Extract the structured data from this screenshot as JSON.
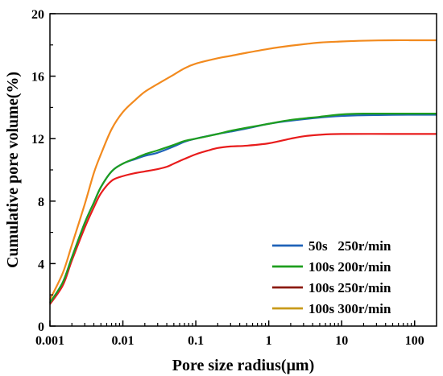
{
  "chart_data": {
    "type": "line",
    "x_scale": "log",
    "xlim": [
      0.001,
      200
    ],
    "ylim": [
      0,
      20
    ],
    "xlabel": "Pore size radius(μm)",
    "ylabel": "Cumulative pore volume(%)",
    "x_ticks": [
      {
        "value": 0.001,
        "label": "0.001"
      },
      {
        "value": 0.01,
        "label": "0.01"
      },
      {
        "value": 0.1,
        "label": "0.1"
      },
      {
        "value": 1,
        "label": "1"
      },
      {
        "value": 10,
        "label": "10"
      },
      {
        "value": 100,
        "label": "100"
      }
    ],
    "y_ticks": [
      {
        "value": 0,
        "label": "0"
      },
      {
        "value": 4,
        "label": "4"
      },
      {
        "value": 8,
        "label": "8"
      },
      {
        "value": 12,
        "label": "12"
      },
      {
        "value": 16,
        "label": "16"
      },
      {
        "value": 20,
        "label": "20"
      }
    ],
    "legend_position": "bottom-right",
    "series": [
      {
        "name": "50s   250r/min",
        "legend_color": "#1f63b8",
        "line_color": "#1f63b8",
        "points": [
          [
            0.001,
            1.5
          ],
          [
            0.0015,
            2.8
          ],
          [
            0.002,
            4.4
          ],
          [
            0.003,
            6.6
          ],
          [
            0.004,
            7.9
          ],
          [
            0.005,
            8.9
          ],
          [
            0.007,
            9.9
          ],
          [
            0.01,
            10.4
          ],
          [
            0.015,
            10.7
          ],
          [
            0.02,
            10.9
          ],
          [
            0.03,
            11.1
          ],
          [
            0.05,
            11.5
          ],
          [
            0.07,
            11.8
          ],
          [
            0.1,
            12.0
          ],
          [
            0.2,
            12.3
          ],
          [
            0.3,
            12.45
          ],
          [
            0.5,
            12.65
          ],
          [
            1,
            12.95
          ],
          [
            2,
            13.15
          ],
          [
            5,
            13.35
          ],
          [
            10,
            13.45
          ],
          [
            20,
            13.5
          ],
          [
            50,
            13.52
          ],
          [
            100,
            13.53
          ],
          [
            200,
            13.53
          ]
        ]
      },
      {
        "name": "100s 200r/min",
        "legend_color": "#1e9e1e",
        "line_color": "#1e9e1e",
        "points": [
          [
            0.001,
            1.5
          ],
          [
            0.0015,
            2.8
          ],
          [
            0.002,
            4.4
          ],
          [
            0.003,
            6.6
          ],
          [
            0.004,
            7.9
          ],
          [
            0.005,
            8.9
          ],
          [
            0.007,
            9.9
          ],
          [
            0.01,
            10.4
          ],
          [
            0.015,
            10.75
          ],
          [
            0.02,
            11.0
          ],
          [
            0.03,
            11.25
          ],
          [
            0.05,
            11.6
          ],
          [
            0.07,
            11.85
          ],
          [
            0.1,
            12.0
          ],
          [
            0.2,
            12.3
          ],
          [
            0.3,
            12.5
          ],
          [
            0.5,
            12.7
          ],
          [
            1,
            12.95
          ],
          [
            2,
            13.2
          ],
          [
            5,
            13.4
          ],
          [
            10,
            13.55
          ],
          [
            20,
            13.6
          ],
          [
            50,
            13.6
          ],
          [
            100,
            13.6
          ],
          [
            200,
            13.6
          ]
        ]
      },
      {
        "name": "100s 250r/min",
        "legend_color": "#8b1a10",
        "line_color": "#e81c1c",
        "points": [
          [
            0.001,
            1.4
          ],
          [
            0.0015,
            2.6
          ],
          [
            0.002,
            4.2
          ],
          [
            0.003,
            6.3
          ],
          [
            0.004,
            7.6
          ],
          [
            0.005,
            8.5
          ],
          [
            0.007,
            9.3
          ],
          [
            0.01,
            9.6
          ],
          [
            0.015,
            9.8
          ],
          [
            0.02,
            9.9
          ],
          [
            0.03,
            10.05
          ],
          [
            0.04,
            10.2
          ],
          [
            0.05,
            10.4
          ],
          [
            0.07,
            10.7
          ],
          [
            0.1,
            11.0
          ],
          [
            0.15,
            11.25
          ],
          [
            0.2,
            11.4
          ],
          [
            0.3,
            11.5
          ],
          [
            0.5,
            11.55
          ],
          [
            1,
            11.7
          ],
          [
            2,
            12.0
          ],
          [
            3,
            12.15
          ],
          [
            5,
            12.25
          ],
          [
            10,
            12.3
          ],
          [
            50,
            12.3
          ],
          [
            200,
            12.3
          ]
        ]
      },
      {
        "name": "100s 300r/min",
        "legend_color": "#c99a1a",
        "line_color": "#f28a1e",
        "points": [
          [
            0.001,
            1.7
          ],
          [
            0.0015,
            3.4
          ],
          [
            0.002,
            5.2
          ],
          [
            0.003,
            7.8
          ],
          [
            0.004,
            9.8
          ],
          [
            0.005,
            11.0
          ],
          [
            0.007,
            12.6
          ],
          [
            0.01,
            13.7
          ],
          [
            0.015,
            14.5
          ],
          [
            0.02,
            15.0
          ],
          [
            0.03,
            15.5
          ],
          [
            0.05,
            16.1
          ],
          [
            0.07,
            16.5
          ],
          [
            0.1,
            16.8
          ],
          [
            0.2,
            17.15
          ],
          [
            0.3,
            17.3
          ],
          [
            0.5,
            17.5
          ],
          [
            1,
            17.75
          ],
          [
            2,
            17.95
          ],
          [
            5,
            18.15
          ],
          [
            10,
            18.22
          ],
          [
            20,
            18.27
          ],
          [
            50,
            18.3
          ],
          [
            100,
            18.3
          ],
          [
            200,
            18.3
          ]
        ]
      }
    ]
  }
}
